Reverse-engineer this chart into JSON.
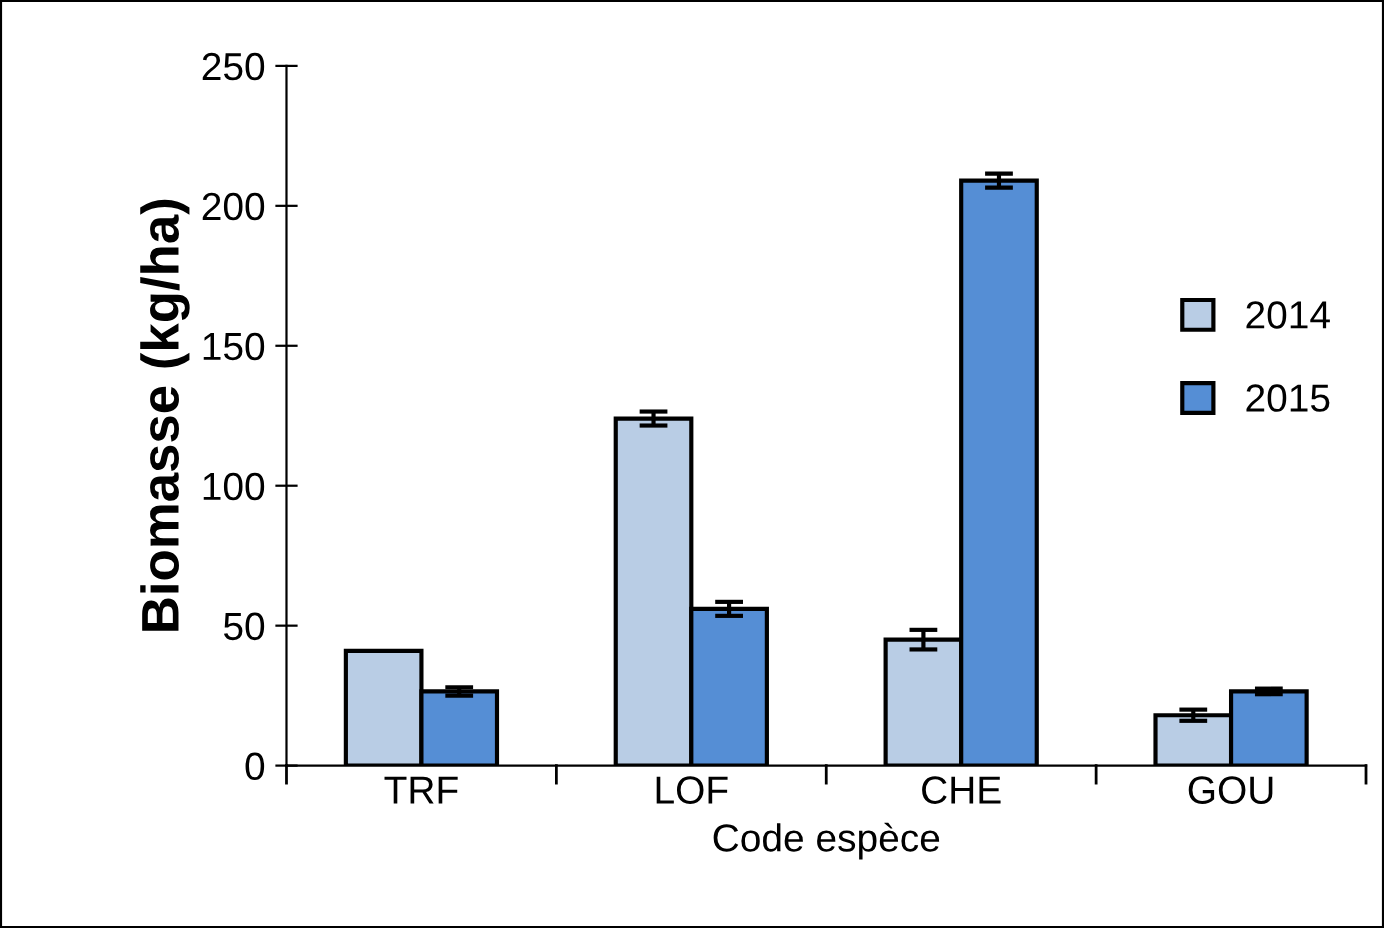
{
  "chart_data": {
    "type": "bar",
    "xlabel": "Code espèce",
    "ylabel": "Biomasse (kg/ha)",
    "categories": [
      "TRF",
      "LOF",
      "CHE",
      "GOU"
    ],
    "series": [
      {
        "name": "2014",
        "color": "#b9cde5",
        "values": [
          41,
          124,
          45,
          18
        ],
        "errors": [
          null,
          2.5,
          3.5,
          2
        ]
      },
      {
        "name": "2015",
        "color": "#558ed5",
        "values": [
          26.5,
          56,
          209,
          26.5
        ],
        "errors": [
          1.5,
          2.5,
          2.5,
          1
        ]
      }
    ],
    "ylim": [
      0,
      250
    ],
    "yticks": [
      0,
      50,
      100,
      150,
      200,
      250
    ],
    "grid": false,
    "legend": "right"
  }
}
